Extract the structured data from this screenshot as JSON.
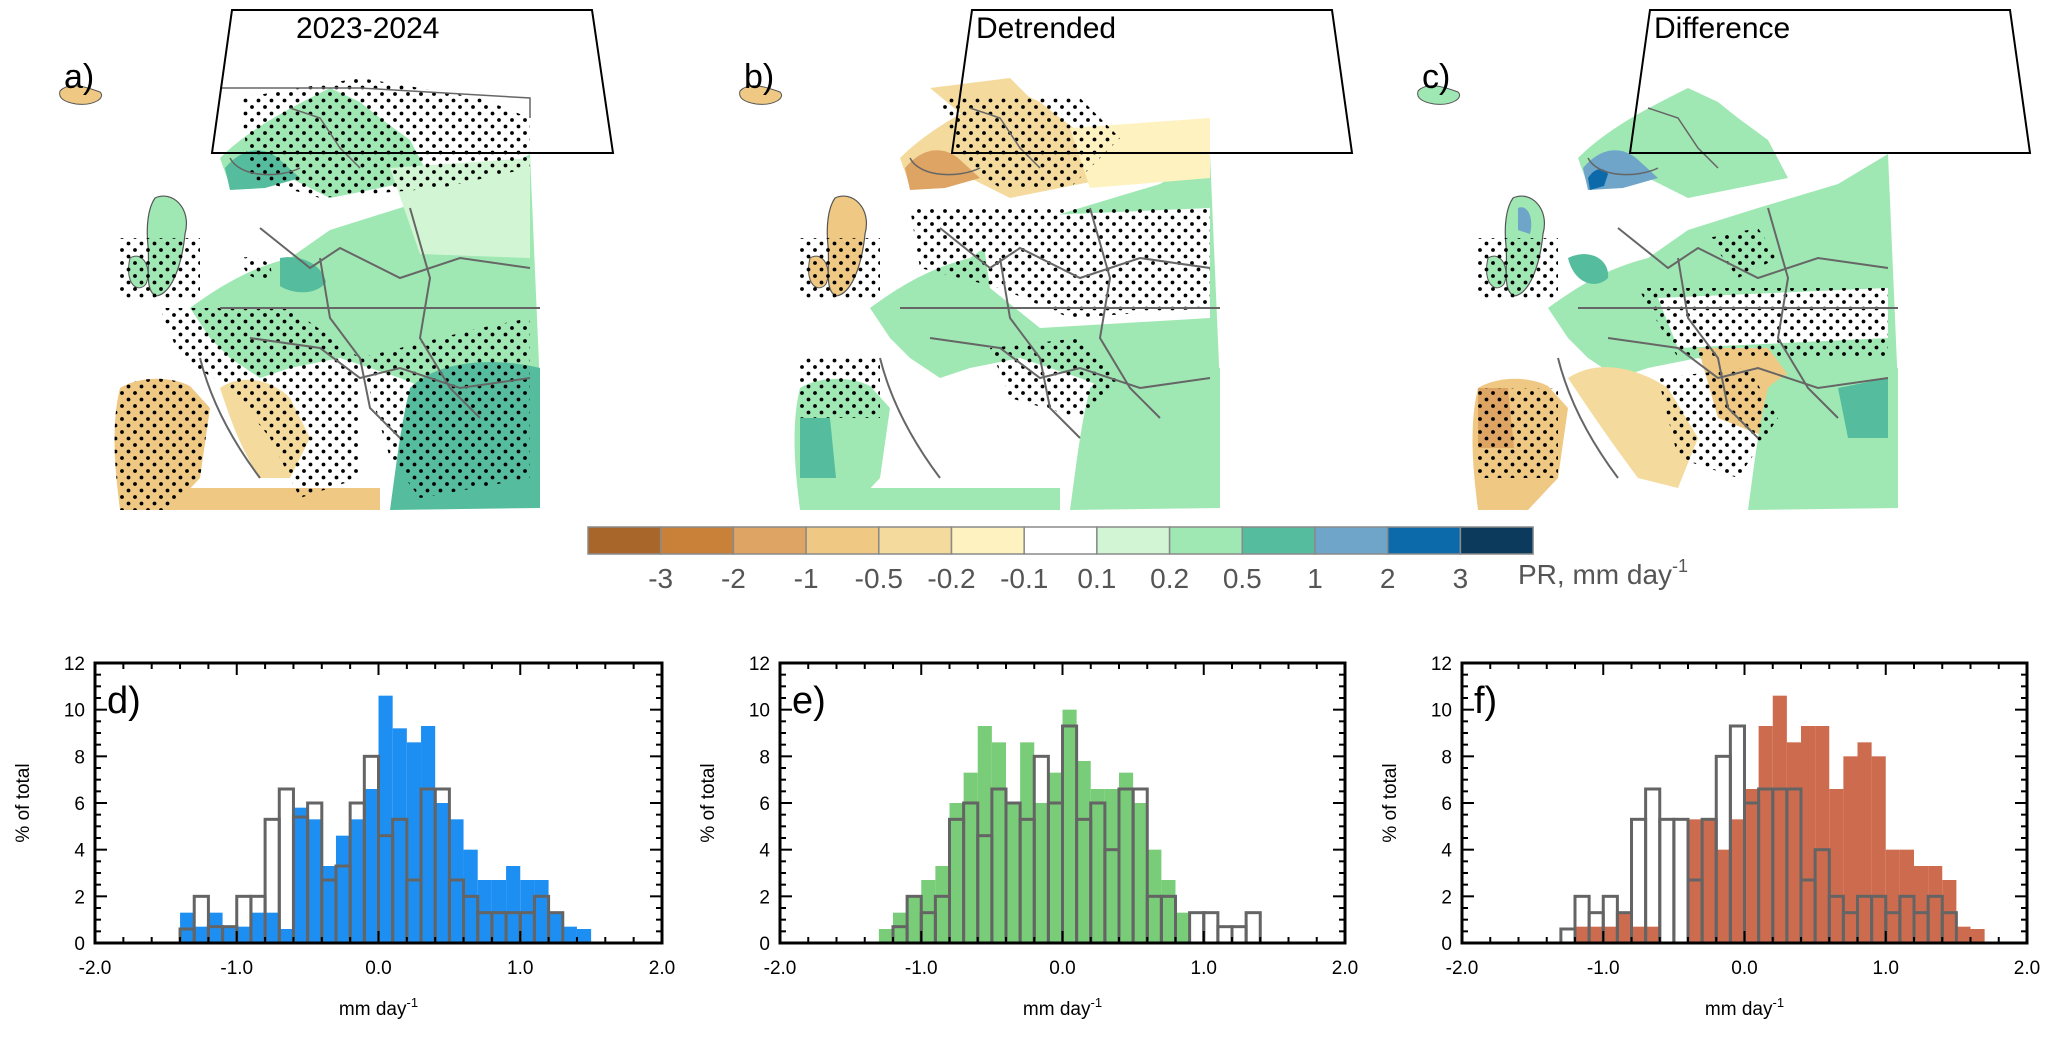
{
  "maps": [
    {
      "letter": "a)",
      "title": "2023-2024"
    },
    {
      "letter": "b)",
      "title": "Detrended"
    },
    {
      "letter": "c)",
      "title": "Difference"
    }
  ],
  "colorbar": {
    "colors": [
      "#a9662a",
      "#c98139",
      "#dda463",
      "#efc983",
      "#f4db9d",
      "#fdf2c0",
      "#ffffff",
      "#d2f6d3",
      "#9fe8b4",
      "#55bd9d",
      "#6fa5c8",
      "#0d6aaa",
      "#0b3a5c"
    ],
    "tick_labels": [
      "-3",
      "-2",
      "-1",
      "-0.5",
      "-0.2",
      "-0.1",
      "0.1",
      "0.2",
      "0.5",
      "1",
      "2",
      "3"
    ],
    "label_main": "PR, mm day",
    "label_sup": "-1"
  },
  "chart_data": [
    {
      "type": "bar",
      "letter": "d)",
      "fill_color": "#1e8ff2",
      "outline_color": "#646464",
      "bin_width": 0.1,
      "xlim": [
        -2.0,
        2.0
      ],
      "ylim": [
        0,
        12
      ],
      "x_ticks": [
        "-2.0",
        "-1.0",
        "0.0",
        "1.0",
        "2.0"
      ],
      "y_ticks": [
        "0",
        "2",
        "4",
        "6",
        "8",
        "10",
        "12"
      ],
      "xlabel_main": "mm day",
      "xlabel_sup": "-1",
      "ylabel": "% of total",
      "series": [
        {
          "x": [
            -1.35,
            -1.25,
            -1.15,
            -1.05,
            -0.95,
            -0.85,
            -0.75,
            -0.65,
            -0.55,
            -0.45,
            -0.35,
            -0.25,
            -0.15,
            -0.05,
            0.05,
            0.15,
            0.25,
            0.35,
            0.45,
            0.55,
            0.65,
            0.75,
            0.85,
            0.95,
            1.05,
            1.15,
            1.25,
            1.35,
            1.45
          ],
          "values": [
            1.3,
            0.7,
            1.3,
            0.7,
            0.7,
            1.3,
            1.3,
            0.6,
            5.8,
            5.3,
            3.3,
            4.6,
            5.3,
            6.6,
            10.6,
            9.2,
            8.6,
            9.3,
            6.0,
            5.3,
            4.0,
            2.7,
            2.7,
            3.3,
            2.7,
            2.7,
            1.3,
            0.7,
            0.6
          ]
        },
        {
          "x": [
            -1.45,
            -1.35,
            -1.25,
            -1.15,
            -1.05,
            -0.95,
            -0.85,
            -0.75,
            -0.65,
            -0.55,
            -0.45,
            -0.35,
            -0.25,
            -0.15,
            -0.05,
            0.05,
            0.15,
            0.25,
            0.35,
            0.45,
            0.55,
            0.65,
            0.75,
            0.85,
            0.95,
            1.05,
            1.15,
            1.25,
            1.35,
            1.45
          ],
          "values": [
            0,
            0.6,
            2.0,
            0.7,
            0.7,
            2.0,
            2.0,
            5.3,
            6.6,
            5.4,
            6.0,
            2.7,
            3.3,
            6.0,
            8.0,
            4.6,
            5.3,
            2.7,
            6.6,
            6.6,
            2.7,
            2.0,
            1.3,
            1.3,
            1.3,
            1.3,
            2.0,
            1.3,
            0,
            0
          ]
        }
      ]
    },
    {
      "type": "bar",
      "letter": "e)",
      "fill_color": "#79cd79",
      "outline_color": "#646464",
      "bin_width": 0.1,
      "xlim": [
        -2.0,
        2.0
      ],
      "ylim": [
        0,
        12
      ],
      "x_ticks": [
        "-2.0",
        "-1.0",
        "0.0",
        "1.0",
        "2.0"
      ],
      "y_ticks": [
        "0",
        "2",
        "4",
        "6",
        "8",
        "10",
        "12"
      ],
      "xlabel_main": "mm day",
      "xlabel_sup": "-1",
      "ylabel": "% of total",
      "series": [
        {
          "x": [
            -1.25,
            -1.15,
            -1.05,
            -0.95,
            -0.85,
            -0.75,
            -0.65,
            -0.55,
            -0.45,
            -0.35,
            -0.25,
            -0.15,
            -0.05,
            0.05,
            0.15,
            0.25,
            0.35,
            0.45,
            0.55,
            0.65,
            0.75,
            0.85
          ],
          "values": [
            0.6,
            1.3,
            2.0,
            2.7,
            3.3,
            6.0,
            7.3,
            9.3,
            8.6,
            6.0,
            8.6,
            6.0,
            7.3,
            10.0,
            7.8,
            6.6,
            6.6,
            7.3,
            6.0,
            4.0,
            2.7,
            1.3
          ]
        },
        {
          "x": [
            -1.25,
            -1.15,
            -1.05,
            -0.95,
            -0.85,
            -0.75,
            -0.65,
            -0.55,
            -0.45,
            -0.35,
            -0.25,
            -0.15,
            -0.05,
            0.05,
            0.15,
            0.25,
            0.35,
            0.45,
            0.55,
            0.65,
            0.75,
            0.85,
            0.95,
            1.05,
            1.15,
            1.25,
            1.35
          ],
          "values": [
            0,
            0.7,
            2.0,
            1.3,
            2.0,
            5.3,
            6.0,
            4.6,
            6.6,
            6.0,
            5.3,
            8.0,
            6.0,
            9.3,
            5.3,
            6.0,
            4.0,
            6.6,
            6.6,
            2.0,
            2.0,
            0,
            1.3,
            1.3,
            0.7,
            0.7,
            1.3
          ]
        }
      ]
    },
    {
      "type": "bar",
      "letter": "f)",
      "fill_color": "#cd6b4f",
      "outline_color": "#646464",
      "bin_width": 0.1,
      "xlim": [
        -2.0,
        2.0
      ],
      "ylim": [
        0,
        12
      ],
      "x_ticks": [
        "-2.0",
        "-1.0",
        "0.0",
        "1.0",
        "2.0"
      ],
      "y_ticks": [
        "0",
        "2",
        "4",
        "6",
        "8",
        "10",
        "12"
      ],
      "xlabel_main": "mm day",
      "xlabel_sup": "-1",
      "ylabel": "% of total",
      "series": [
        {
          "x": [
            -1.15,
            -1.05,
            -0.95,
            -0.85,
            -0.75,
            -0.65,
            -0.55,
            -0.45,
            -0.35,
            -0.25,
            -0.15,
            -0.05,
            0.05,
            0.15,
            0.25,
            0.35,
            0.45,
            0.55,
            0.65,
            0.75,
            0.85,
            0.95,
            1.05,
            1.15,
            1.25,
            1.35,
            1.45,
            1.55,
            1.65
          ],
          "values": [
            0.7,
            0.7,
            0.7,
            1.3,
            0.7,
            0.7,
            0,
            0,
            5.3,
            5.3,
            4.0,
            5.3,
            6.6,
            9.3,
            10.6,
            8.6,
            9.3,
            9.3,
            6.6,
            8.0,
            8.6,
            8.0,
            4.0,
            4.0,
            3.3,
            3.3,
            2.7,
            0.7,
            0.6
          ]
        },
        {
          "x": [
            -1.25,
            -1.15,
            -1.05,
            -0.95,
            -0.85,
            -0.75,
            -0.65,
            -0.55,
            -0.45,
            -0.35,
            -0.25,
            -0.15,
            -0.05,
            0.05,
            0.15,
            0.25,
            0.35,
            0.45,
            0.55,
            0.65,
            0.75,
            0.85,
            0.95,
            1.05,
            1.15,
            1.25,
            1.35,
            1.45
          ],
          "values": [
            0.6,
            2.0,
            1.3,
            2.0,
            1.3,
            5.3,
            6.6,
            5.3,
            5.3,
            2.7,
            5.3,
            8.0,
            9.3,
            6.0,
            6.6,
            6.6,
            6.6,
            2.7,
            4.0,
            2.0,
            1.3,
            2.0,
            2.0,
            1.3,
            2.0,
            1.3,
            2.0,
            1.3
          ]
        }
      ]
    }
  ]
}
